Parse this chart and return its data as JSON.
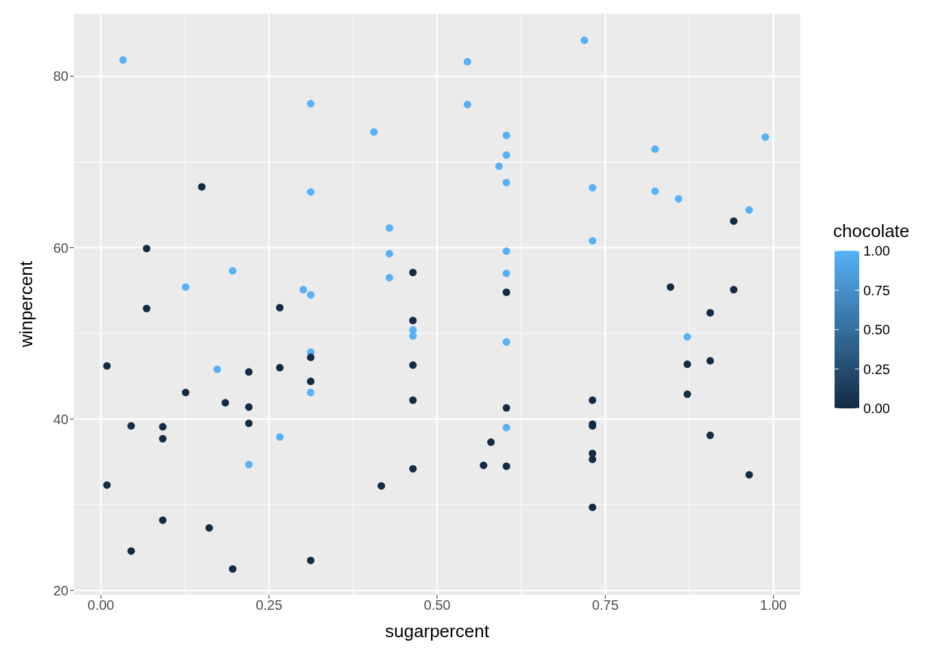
{
  "chart_data": {
    "type": "scatter",
    "xlabel": "sugarpercent",
    "ylabel": "winpercent",
    "clabel": "chocolate",
    "grid": true,
    "marker": "circle",
    "xlim": [
      -0.04,
      1.04
    ],
    "ylim": [
      19.5,
      87.3
    ],
    "xticks": [
      {
        "value": 0,
        "label": "0.00"
      },
      {
        "value": 0.25,
        "label": "0.25"
      },
      {
        "value": 0.5,
        "label": "0.50"
      },
      {
        "value": 0.75,
        "label": "0.75"
      },
      {
        "value": 1,
        "label": "1.00"
      }
    ],
    "yticks": [
      20,
      40,
      60,
      80
    ],
    "clim": [
      0,
      1
    ],
    "cticks": [
      {
        "value": 0,
        "label": "0.00"
      },
      {
        "value": 0.25,
        "label": "0.25"
      },
      {
        "value": 0.5,
        "label": "0.50"
      },
      {
        "value": 0.75,
        "label": "0.75"
      },
      {
        "value": 1,
        "label": "1.00"
      }
    ],
    "series": [
      {
        "x": [
          0.033,
          0.312,
          0.312,
          0.126,
          0.196,
          0.173,
          0.22,
          0.266,
          0.301,
          0.312,
          0.312,
          0.312,
          0.406,
          0.429,
          0.429,
          0.429,
          0.464,
          0.464,
          0.545,
          0.545,
          0.603,
          0.603,
          0.592,
          0.603,
          0.603,
          0.603,
          0.603,
          0.603,
          0.719,
          0.731,
          0.731,
          0.824,
          0.824,
          0.859,
          0.872,
          0.964,
          0.988,
          0.009,
          0.009,
          0.045,
          0.045,
          0.068,
          0.068,
          0.092,
          0.092,
          0.092,
          0.15,
          0.126,
          0.161,
          0.185,
          0.196,
          0.22,
          0.22,
          0.22,
          0.266,
          0.266,
          0.312,
          0.312,
          0.312,
          0.417,
          0.464,
          0.464,
          0.464,
          0.464,
          0.464,
          0.569,
          0.58,
          0.603,
          0.603,
          0.603,
          0.731,
          0.731,
          0.731,
          0.731,
          0.731,
          0.731,
          0.847,
          0.872,
          0.872,
          0.906,
          0.906,
          0.906,
          0.941,
          0.941,
          0.964
        ],
        "values": [
          81.9,
          76.8,
          66.5,
          55.4,
          57.3,
          45.8,
          34.7,
          37.9,
          55.1,
          54.5,
          47.8,
          43.1,
          73.5,
          62.3,
          59.3,
          56.5,
          50.4,
          49.7,
          81.7,
          76.7,
          73.1,
          70.8,
          69.5,
          67.6,
          59.6,
          57.0,
          49.0,
          39.0,
          84.2,
          67.0,
          60.8,
          71.5,
          66.6,
          65.7,
          49.6,
          64.4,
          72.9,
          46.2,
          32.3,
          39.2,
          24.6,
          59.9,
          52.9,
          39.1,
          37.7,
          28.2,
          67.1,
          43.1,
          27.3,
          41.9,
          22.5,
          45.5,
          41.4,
          39.5,
          53.0,
          46.0,
          47.2,
          44.4,
          23.5,
          32.2,
          57.1,
          51.5,
          46.3,
          42.2,
          34.2,
          34.6,
          37.3,
          54.8,
          41.3,
          34.5,
          42.2,
          39.4,
          39.2,
          36.0,
          35.3,
          29.7,
          55.4,
          46.4,
          42.9,
          52.4,
          46.8,
          38.1,
          63.1,
          55.1,
          33.5
        ],
        "cvalues": [
          1,
          1,
          1,
          1,
          1,
          1,
          1,
          1,
          1,
          1,
          1,
          1,
          1,
          1,
          1,
          1,
          1,
          1,
          1,
          1,
          1,
          1,
          1,
          1,
          1,
          1,
          1,
          1,
          1,
          1,
          1,
          1,
          1,
          1,
          1,
          1,
          1,
          0,
          0,
          0,
          0,
          0,
          0,
          0,
          0,
          0,
          0,
          0,
          0,
          0,
          0,
          0,
          0,
          0,
          0,
          0,
          0,
          0,
          0,
          0,
          0,
          0,
          0,
          0,
          0,
          0,
          0,
          0,
          0,
          0,
          0,
          0,
          0,
          0,
          0,
          0,
          0,
          0,
          0,
          0,
          0,
          0,
          0,
          0,
          0
        ]
      }
    ]
  }
}
